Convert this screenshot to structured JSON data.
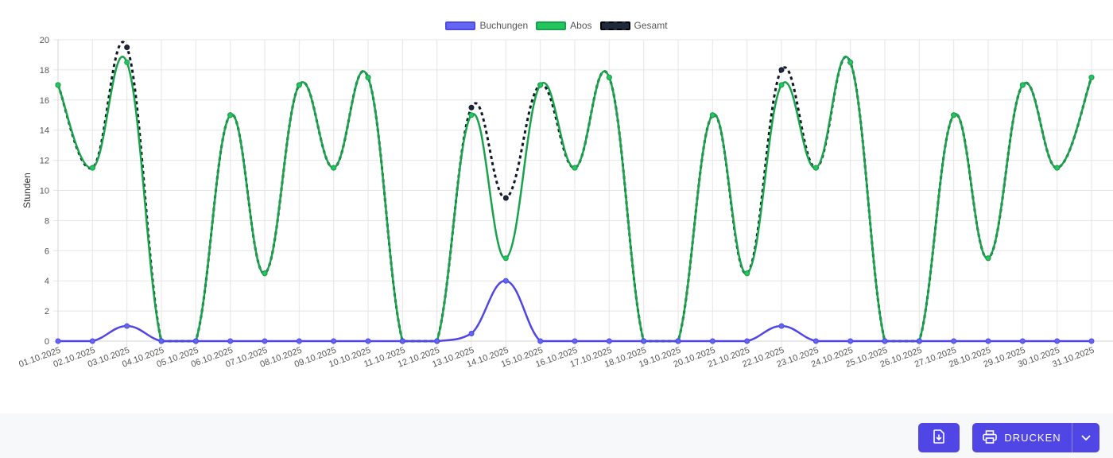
{
  "chart_data": {
    "type": "line",
    "ylabel": "Stunden",
    "ylim": [
      0,
      20
    ],
    "yticks": [
      0,
      2,
      4,
      6,
      8,
      10,
      12,
      14,
      16,
      18,
      20
    ],
    "grid": true,
    "legend_position": "top",
    "categories": [
      "01.10.2025",
      "02.10.2025",
      "03.10.2025",
      "04.10.2025",
      "05.10.2025",
      "06.10.2025",
      "07.10.2025",
      "08.10.2025",
      "09.10.2025",
      "10.10.2025",
      "11.10.2025",
      "12.10.2025",
      "13.10.2025",
      "14.10.2025",
      "15.10.2025",
      "16.10.2025",
      "17.10.2025",
      "18.10.2025",
      "19.10.2025",
      "20.10.2025",
      "21.10.2025",
      "22.10.2025",
      "23.10.2025",
      "24.10.2025",
      "25.10.2025",
      "26.10.2025",
      "27.10.2025",
      "28.10.2025",
      "29.10.2025",
      "30.10.2025",
      "31.10.2025"
    ],
    "series": [
      {
        "name": "Buchungen",
        "color": "#4f46e5",
        "fill": "#6366f1",
        "dashed": false,
        "values": [
          0,
          0,
          1,
          0,
          0,
          0,
          0,
          0,
          0,
          0,
          0,
          0,
          0.5,
          4,
          0,
          0,
          0,
          0,
          0,
          0,
          0,
          1,
          0,
          0,
          0,
          0,
          0,
          0,
          0,
          0,
          0
        ]
      },
      {
        "name": "Abos",
        "color": "#16a34a",
        "fill": "#22c55e",
        "dashed": false,
        "values": [
          17,
          11.5,
          18.5,
          0,
          0,
          15,
          4.5,
          17,
          11.5,
          17.5,
          0,
          0,
          15,
          5.5,
          17,
          11.5,
          17.5,
          0,
          0,
          15,
          4.5,
          17,
          11.5,
          18.5,
          0,
          0,
          15,
          5.5,
          17,
          11.5,
          17.5
        ]
      },
      {
        "name": "Gesamt",
        "color": "#111827",
        "fill": "#1e293b",
        "dashed": true,
        "values": [
          17,
          11.5,
          19.5,
          0,
          0,
          15,
          4.5,
          17,
          11.5,
          17.5,
          0,
          0,
          15.5,
          9.5,
          17,
          11.5,
          17.5,
          0,
          0,
          15,
          4.5,
          18,
          11.5,
          18.5,
          0,
          0,
          15,
          5.5,
          17,
          11.5,
          17.5
        ]
      }
    ]
  },
  "footer": {
    "download_icon": "file-download-icon",
    "print_icon": "printer-icon",
    "print_label": "DRUCKEN",
    "caret_icon": "chevron-down-icon"
  }
}
